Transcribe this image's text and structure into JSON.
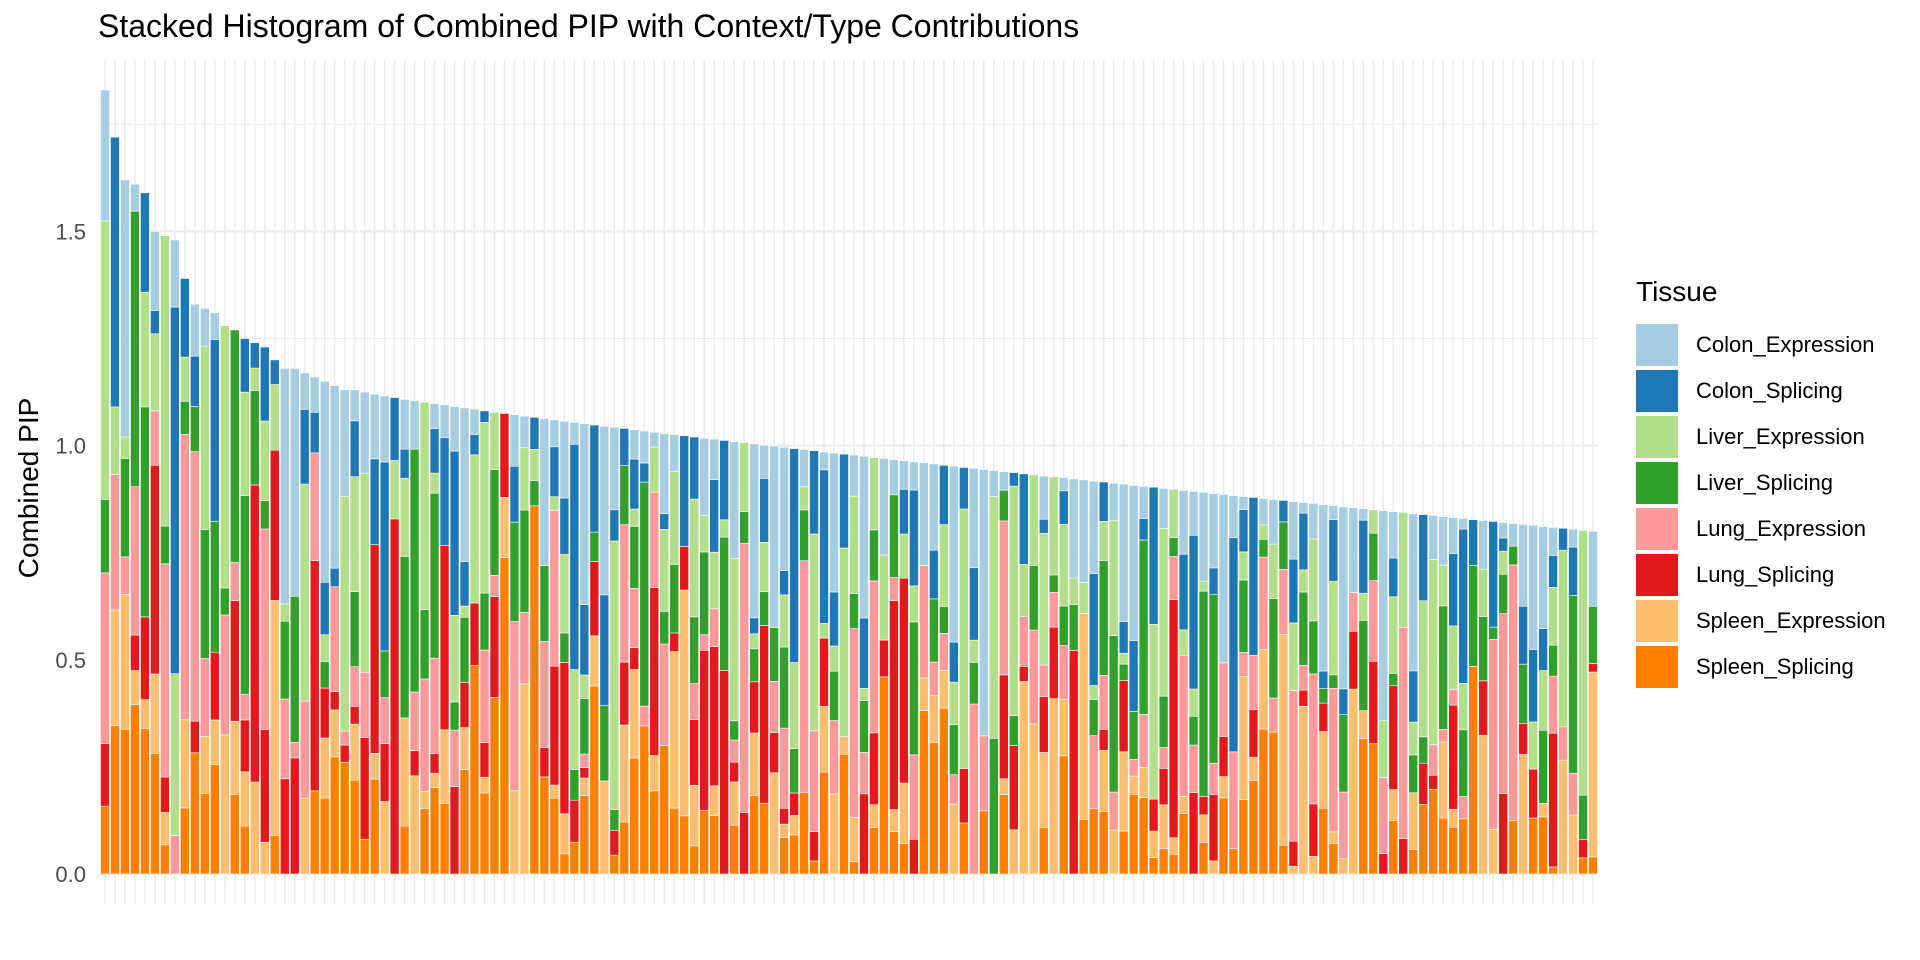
{
  "chart_data": {
    "type": "bar",
    "stacked": true,
    "title": "Stacked Histogram of Combined PIP with Context/Type Contributions",
    "xlabel": "",
    "ylabel": "Combined PIP",
    "ylim": [
      0,
      1.9
    ],
    "yticks": [
      "0.0",
      "0.5",
      "1.0",
      "1.5"
    ],
    "grid": true,
    "legend_title": "Tissue",
    "legend_position": "right",
    "series": [
      {
        "name": "Colon_Expression",
        "color": "#A6CEE3"
      },
      {
        "name": "Colon_Splicing",
        "color": "#1F78B4"
      },
      {
        "name": "Liver_Expression",
        "color": "#B2DF8A"
      },
      {
        "name": "Liver_Splicing",
        "color": "#33A02C"
      },
      {
        "name": "Lung_Expression",
        "color": "#FB9A99"
      },
      {
        "name": "Lung_Splicing",
        "color": "#E31A1C"
      },
      {
        "name": "Spleen_Expression",
        "color": "#FDBF6F"
      },
      {
        "name": "Spleen_Splicing",
        "color": "#FF7F00"
      }
    ],
    "num_categories": 150,
    "first_totals": [
      1.83,
      1.72,
      1.62,
      1.61,
      1.59,
      1.5,
      1.49,
      1.48,
      1.39,
      1.33,
      1.32,
      1.31,
      1.28,
      1.27,
      1.25,
      1.24,
      1.23,
      1.2,
      1.18,
      1.18,
      1.17,
      1.16,
      1.15,
      1.14,
      1.13
    ],
    "last_total": 0.8,
    "total_trend": {
      "start": 1.83,
      "end": 0.8
    },
    "composition_palette_order": [
      "Spleen_Splicing",
      "Spleen_Expression",
      "Lung_Splicing",
      "Lung_Expression",
      "Liver_Splicing",
      "Liver_Expression",
      "Colon_Splicing",
      "Colon_Expression"
    ]
  }
}
